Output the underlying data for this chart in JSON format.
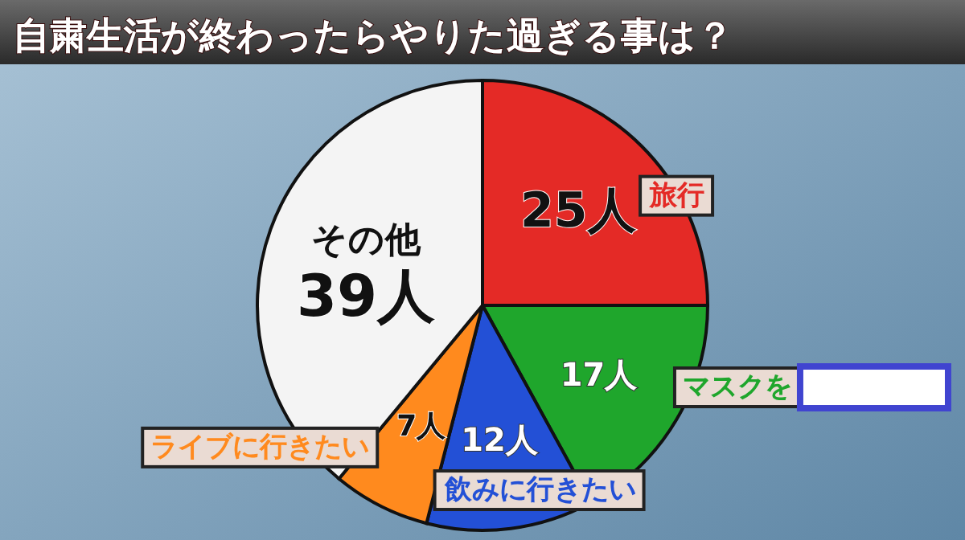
{
  "chart_data": {
    "type": "pie",
    "title": "自粛生活が終わったらやりた過ぎる事は？",
    "categories": [
      "旅行",
      "マスクを",
      "飲みに行きたい",
      "ライブに行きたい",
      "その他"
    ],
    "values": [
      25,
      17,
      12,
      7,
      39
    ],
    "value_labels": [
      "25人",
      "17人",
      "12人",
      "7人",
      "39人"
    ],
    "colors": [
      "#e42a26",
      "#1fa62c",
      "#2350d6",
      "#ff8a1e",
      "#f4f4f4"
    ]
  }
}
